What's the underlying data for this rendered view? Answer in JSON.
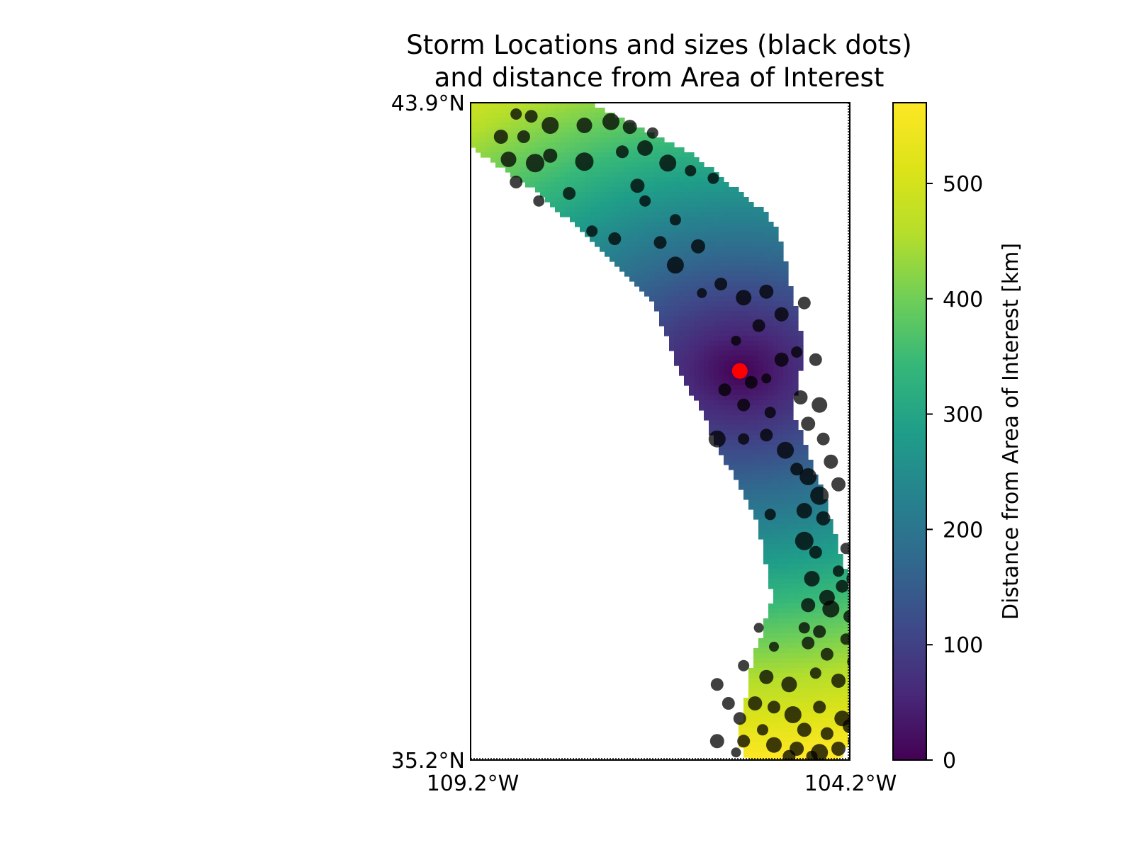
{
  "chart_data": {
    "type": "scatter",
    "title": "Storm Locations and sizes (black dots)",
    "subtitle": "and distance from Area of Interest",
    "x_ticks": [
      "109.2°W",
      "104.2°W"
    ],
    "y_ticks": [
      "43.9°N",
      "35.2°N"
    ],
    "xlim": [
      -109.2,
      -104.2
    ],
    "ylim": [
      35.2,
      43.9
    ],
    "colorbar": {
      "label": "Distance from Area of Interest [km]",
      "ticks": [
        "0",
        "100",
        "200",
        "300",
        "400",
        "500"
      ],
      "tick_values": [
        0,
        100,
        200,
        300,
        400,
        500
      ],
      "range": [
        0,
        570
      ],
      "colormap": "viridis"
    },
    "area_of_interest": {
      "lon": -105.65,
      "lat": 40.35,
      "color": "#ff0000"
    },
    "storm_color": "#000000",
    "corridor_centerline": [
      [
        -108.85,
        43.7
      ],
      [
        -107.8,
        43.2
      ],
      [
        -106.8,
        42.5
      ],
      [
        -106.0,
        41.8
      ],
      [
        -105.65,
        40.6
      ],
      [
        -105.5,
        39.7
      ],
      [
        -105.0,
        38.6
      ],
      [
        -104.7,
        37.4
      ],
      [
        -104.7,
        36.4
      ],
      [
        -104.95,
        35.55
      ]
    ],
    "storms": [
      [
        -108.6,
        43.75,
        8
      ],
      [
        -108.4,
        43.72,
        9
      ],
      [
        -108.15,
        43.6,
        12
      ],
      [
        -107.7,
        43.6,
        11
      ],
      [
        -107.35,
        43.65,
        12
      ],
      [
        -107.1,
        43.58,
        10
      ],
      [
        -106.8,
        43.5,
        8
      ],
      [
        -108.8,
        43.45,
        10
      ],
      [
        -108.5,
        43.45,
        9
      ],
      [
        -108.35,
        43.1,
        13
      ],
      [
        -108.7,
        43.15,
        11
      ],
      [
        -108.15,
        43.2,
        10
      ],
      [
        -107.7,
        43.12,
        13
      ],
      [
        -107.2,
        43.25,
        9
      ],
      [
        -106.9,
        43.3,
        11
      ],
      [
        -106.6,
        43.1,
        12
      ],
      [
        -106.3,
        43.0,
        8
      ],
      [
        -108.6,
        42.85,
        9
      ],
      [
        -108.3,
        42.6,
        8
      ],
      [
        -107.9,
        42.7,
        9
      ],
      [
        -107.0,
        42.8,
        10
      ],
      [
        -106.9,
        42.6,
        8
      ],
      [
        -106.0,
        42.9,
        8
      ],
      [
        -106.5,
        42.35,
        8
      ],
      [
        -107.6,
        42.2,
        8
      ],
      [
        -107.3,
        42.1,
        9
      ],
      [
        -106.7,
        42.05,
        9
      ],
      [
        -106.2,
        42.0,
        10
      ],
      [
        -106.5,
        41.75,
        12
      ],
      [
        -106.15,
        41.38,
        7
      ],
      [
        -105.9,
        41.5,
        9
      ],
      [
        -105.6,
        41.32,
        11
      ],
      [
        -105.3,
        41.4,
        10
      ],
      [
        -105.1,
        41.1,
        10
      ],
      [
        -104.8,
        41.25,
        9
      ],
      [
        -105.7,
        40.75,
        7
      ],
      [
        -105.4,
        40.95,
        9
      ],
      [
        -105.1,
        40.5,
        10
      ],
      [
        -104.9,
        40.6,
        8
      ],
      [
        -104.65,
        40.5,
        9
      ],
      [
        -105.3,
        40.25,
        7
      ],
      [
        -105.85,
        40.1,
        9
      ],
      [
        -105.5,
        40.2,
        9
      ],
      [
        -104.85,
        40.0,
        10
      ],
      [
        -104.6,
        39.9,
        11
      ],
      [
        -105.6,
        39.9,
        9
      ],
      [
        -105.25,
        39.8,
        8
      ],
      [
        -104.75,
        39.65,
        10
      ],
      [
        -104.55,
        39.45,
        9
      ],
      [
        -105.3,
        39.5,
        9
      ],
      [
        -105.05,
        39.3,
        12
      ],
      [
        -105.95,
        39.45,
        12
      ],
      [
        -105.6,
        39.45,
        8
      ],
      [
        -104.9,
        39.05,
        9
      ],
      [
        -104.75,
        38.95,
        12
      ],
      [
        -104.45,
        39.15,
        10
      ],
      [
        -104.6,
        38.7,
        13
      ],
      [
        -104.35,
        38.85,
        10
      ],
      [
        -105.25,
        38.45,
        8
      ],
      [
        -104.8,
        38.5,
        11
      ],
      [
        -104.55,
        38.4,
        10
      ],
      [
        -104.8,
        38.1,
        13
      ],
      [
        -104.65,
        37.95,
        9
      ],
      [
        -104.25,
        38.0,
        8
      ],
      [
        -104.35,
        37.7,
        8
      ],
      [
        -104.7,
        37.6,
        11
      ],
      [
        -104.5,
        37.35,
        11
      ],
      [
        -104.3,
        37.5,
        9
      ],
      [
        -104.15,
        37.6,
        10
      ],
      [
        -104.75,
        37.25,
        10
      ],
      [
        -104.45,
        37.2,
        12
      ],
      [
        -104.2,
        37.1,
        9
      ],
      [
        -104.8,
        36.95,
        8
      ],
      [
        -104.6,
        36.9,
        9
      ],
      [
        -104.25,
        36.8,
        8
      ],
      [
        -105.4,
        36.95,
        7
      ],
      [
        -104.75,
        36.75,
        9
      ],
      [
        -105.2,
        36.7,
        7
      ],
      [
        -104.5,
        36.6,
        9
      ],
      [
        -105.6,
        36.45,
        8
      ],
      [
        -105.95,
        36.2,
        9
      ],
      [
        -105.3,
        36.3,
        10
      ],
      [
        -105.0,
        36.2,
        11
      ],
      [
        -104.65,
        36.35,
        8
      ],
      [
        -104.35,
        36.25,
        10
      ],
      [
        -104.15,
        36.5,
        9
      ],
      [
        -105.8,
        35.95,
        9
      ],
      [
        -105.45,
        35.95,
        10
      ],
      [
        -105.2,
        35.9,
        9
      ],
      [
        -104.95,
        35.8,
        12
      ],
      [
        -104.6,
        35.9,
        9
      ],
      [
        -104.3,
        35.75,
        11
      ],
      [
        -105.65,
        35.75,
        9
      ],
      [
        -105.35,
        35.6,
        8
      ],
      [
        -104.8,
        35.6,
        10
      ],
      [
        -104.5,
        35.55,
        9
      ],
      [
        -104.2,
        35.65,
        10
      ],
      [
        -105.95,
        35.45,
        10
      ],
      [
        -105.6,
        35.45,
        9
      ],
      [
        -105.2,
        35.4,
        11
      ],
      [
        -104.9,
        35.35,
        10
      ],
      [
        -104.6,
        35.3,
        12
      ],
      [
        -104.35,
        35.35,
        10
      ],
      [
        -104.15,
        35.45,
        8
      ],
      [
        -105.7,
        35.3,
        7
      ],
      [
        -105.0,
        35.25,
        9
      ],
      [
        -104.7,
        35.25,
        8
      ]
    ]
  }
}
